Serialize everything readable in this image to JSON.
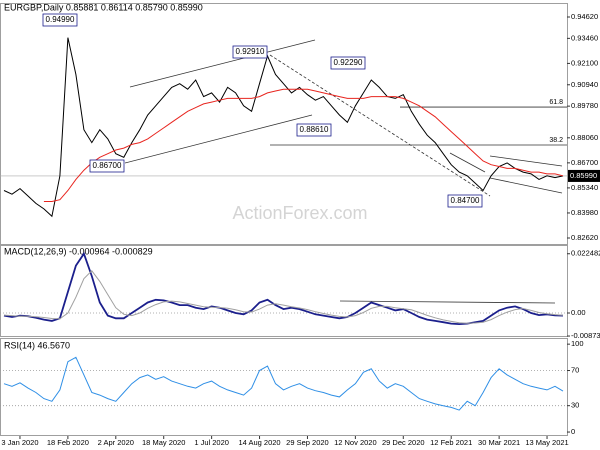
{
  "chart_data": [
    {
      "type": "line",
      "title": "EURGBP,Daily  0.85881 0.86114 0.85790 0.85990",
      "series": [
        {
          "name": "Close",
          "color": "#000000",
          "values": [
            0.852,
            0.85,
            0.853,
            0.849,
            0.845,
            0.842,
            0.838,
            0.86,
            0.935,
            0.915,
            0.885,
            0.878,
            0.885,
            0.88,
            0.872,
            0.87,
            0.878,
            0.885,
            0.893,
            0.898,
            0.903,
            0.908,
            0.91,
            0.907,
            0.912,
            0.903,
            0.905,
            0.9,
            0.908,
            0.905,
            0.898,
            0.895,
            0.91,
            0.925,
            0.915,
            0.91,
            0.905,
            0.908,
            0.904,
            0.901,
            0.903,
            0.898,
            0.893,
            0.889,
            0.898,
            0.905,
            0.912,
            0.908,
            0.903,
            0.902,
            0.904,
            0.895,
            0.888,
            0.882,
            0.878,
            0.872,
            0.866,
            0.862,
            0.86,
            0.856,
            0.852,
            0.86,
            0.865,
            0.867,
            0.864,
            0.862,
            0.861,
            0.858,
            0.86,
            0.859,
            0.8599
          ]
        },
        {
          "name": "SMA",
          "color": "#e8251f",
          "values": [
            null,
            null,
            null,
            null,
            null,
            0.846,
            0.846,
            0.847,
            0.852,
            0.858,
            0.863,
            0.867,
            0.87,
            0.872,
            0.874,
            0.875,
            0.877,
            0.878,
            0.88,
            0.883,
            0.886,
            0.889,
            0.892,
            0.895,
            0.897,
            0.899,
            0.9,
            0.901,
            0.902,
            0.902,
            0.902,
            0.902,
            0.903,
            0.905,
            0.906,
            0.907,
            0.907,
            0.907,
            0.907,
            0.906,
            0.905,
            0.904,
            0.903,
            0.902,
            0.902,
            0.902,
            0.903,
            0.903,
            0.903,
            0.903,
            0.902,
            0.9,
            0.898,
            0.895,
            0.892,
            0.888,
            0.884,
            0.88,
            0.876,
            0.872,
            0.868,
            0.866,
            0.865,
            0.864,
            0.864,
            0.863,
            0.862,
            0.862,
            0.861,
            0.861,
            0.86
          ]
        }
      ],
      "ylim": [
        0.8224,
        0.9538
      ],
      "yticks": [
        {
          "value": 0.9462,
          "label": "0.94620"
        },
        {
          "value": 0.9346,
          "label": "0.93460"
        },
        {
          "value": 0.921,
          "label": "0.92100"
        },
        {
          "value": 0.9094,
          "label": "0.90940"
        },
        {
          "value": 0.8978,
          "label": "0.89780"
        },
        {
          "value": 0.8806,
          "label": "0.88060"
        },
        {
          "value": 0.867,
          "label": "0.86700"
        },
        {
          "value": 0.8534,
          "label": "0.85340"
        },
        {
          "value": 0.8398,
          "label": "0.83980"
        },
        {
          "value": 0.8262,
          "label": "0.82620"
        }
      ],
      "annotations": [
        {
          "value": 0.9499,
          "label": "0.94990"
        },
        {
          "value": 0.9291,
          "label": "0.92910"
        },
        {
          "value": 0.9229,
          "label": "0.92290"
        },
        {
          "value": 0.8861,
          "label": "0.88610"
        },
        {
          "value": 0.867,
          "label": "0.86700"
        },
        {
          "value": 0.847,
          "label": "0.84700"
        }
      ],
      "fib_levels": [
        {
          "value": 0.8973,
          "label": "61.8"
        },
        {
          "value": 0.8767,
          "label": "38.2"
        }
      ],
      "last_price": {
        "value": 0.8599,
        "label": "0.85990"
      },
      "watermark": "ActionForex.com"
    },
    {
      "type": "line",
      "title": "MACD(12,26,9) -0.000964 -0.000829",
      "series": [
        {
          "name": "MACD",
          "color": "#1b1f8c",
          "values": [
            -0.001,
            -0.0015,
            -0.001,
            -0.0012,
            -0.0018,
            -0.0025,
            -0.003,
            -0.002,
            0.008,
            0.018,
            0.0225,
            0.014,
            0.004,
            -0.001,
            -0.002,
            -0.002,
            0.0,
            0.002,
            0.004,
            0.005,
            0.0048,
            0.004,
            0.003,
            0.003,
            0.002,
            0.0015,
            0.0025,
            0.002,
            0.001,
            0.0,
            -0.0005,
            0.001,
            0.004,
            0.005,
            0.003,
            0.0015,
            0.002,
            0.0015,
            0.0005,
            -0.0005,
            -0.001,
            -0.0015,
            -0.002,
            -0.0015,
            0.0,
            0.002,
            0.004,
            0.003,
            0.002,
            0.001,
            0.0015,
            0.0,
            -0.0015,
            -0.0025,
            -0.003,
            -0.0035,
            -0.004,
            -0.0042,
            -0.004,
            -0.0035,
            -0.003,
            -0.001,
            0.001,
            0.002,
            0.0025,
            0.0015,
            0.0,
            -0.0008,
            -0.0005,
            -0.0009,
            -0.000964
          ]
        },
        {
          "name": "Signal",
          "color": "#a0a0a0",
          "values": [
            -0.0008,
            -0.001,
            -0.0012,
            -0.0012,
            -0.0014,
            -0.0017,
            -0.0021,
            -0.0022,
            0.0,
            0.006,
            0.013,
            0.016,
            0.012,
            0.007,
            0.002,
            -0.0005,
            -0.001,
            0.0,
            0.0018,
            0.0032,
            0.0042,
            0.0045,
            0.0042,
            0.0036,
            0.003,
            0.0024,
            0.0022,
            0.0021,
            0.0018,
            0.0012,
            0.0005,
            0.0004,
            0.0015,
            0.003,
            0.0035,
            0.003,
            0.0024,
            0.0019,
            0.0013,
            0.0005,
            -0.0002,
            -0.0008,
            -0.0013,
            -0.0015,
            -0.001,
            0.0002,
            0.0018,
            0.0025,
            0.0025,
            0.002,
            0.0016,
            0.0012,
            0.0002,
            -0.0009,
            -0.0018,
            -0.0026,
            -0.0032,
            -0.0037,
            -0.0039,
            -0.0038,
            -0.0035,
            -0.0025,
            -0.001,
            0.0003,
            0.0013,
            0.0017,
            0.001,
            0.0002,
            -0.0003,
            -0.0006,
            -0.000829
          ]
        }
      ],
      "ylim": [
        -0.0091,
        0.0258
      ],
      "yticks": [
        0.022482,
        {
          "value": 0,
          "label": "0.00"
        },
        -0.008736
      ],
      "levels": [
        0
      ]
    },
    {
      "type": "line",
      "title": "RSI(14) 46.5670",
      "categories": [
        null,
        null,
        "3 Jan 2020",
        null,
        null,
        null,
        null,
        null,
        "18 Feb 2020",
        null,
        null,
        null,
        null,
        null,
        "2 Apr 2020",
        null,
        null,
        null,
        null,
        null,
        "18 May 2020",
        null,
        null,
        null,
        null,
        null,
        "1 Jul 2020",
        null,
        null,
        null,
        null,
        null,
        "14 Aug 2020",
        null,
        null,
        null,
        null,
        null,
        "29 Sep 2020",
        null,
        null,
        null,
        null,
        null,
        "12 Nov 2020",
        null,
        null,
        null,
        null,
        null,
        "29 Dec 2020",
        null,
        null,
        null,
        null,
        null,
        "12 Feb 2021",
        null,
        null,
        null,
        null,
        null,
        "30 Mar 2021",
        null,
        null,
        null,
        null,
        null,
        "13 May 2021",
        null,
        null
      ],
      "series": [
        {
          "name": "RSI",
          "color": "#2f8fe6",
          "values": [
            55,
            52,
            56,
            50,
            45,
            38,
            35,
            48,
            80,
            85,
            65,
            45,
            42,
            38,
            35,
            45,
            55,
            62,
            65,
            60,
            63,
            58,
            55,
            52,
            50,
            55,
            58,
            52,
            48,
            45,
            42,
            50,
            70,
            75,
            55,
            48,
            52,
            55,
            50,
            47,
            45,
            42,
            40,
            48,
            55,
            68,
            72,
            58,
            50,
            55,
            52,
            45,
            38,
            35,
            32,
            30,
            28,
            25,
            35,
            30,
            45,
            62,
            72,
            65,
            60,
            55,
            52,
            50,
            48,
            52,
            46.567
          ]
        }
      ],
      "ylim": [
        -4.5,
        107
      ],
      "yticks": [
        100,
        70,
        30,
        0
      ],
      "levels": [
        70,
        30
      ]
    }
  ]
}
